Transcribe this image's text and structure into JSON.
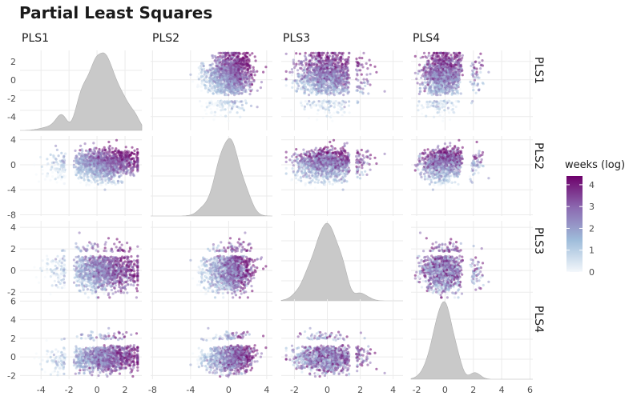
{
  "chart_data": {
    "type": "scatter",
    "title": "Partial Least Squares",
    "variables": [
      "PLS1",
      "PLS2",
      "PLS3",
      "PLS4"
    ],
    "axes": [
      {
        "name": "PLS1",
        "range": [
          -5.5,
          3.2
        ],
        "ticks": [
          -4,
          -2,
          0,
          2
        ],
        "center": 0.3,
        "sd": 1.3
      },
      {
        "name": "PLS2",
        "range": [
          -8.2,
          4.6
        ],
        "ticks": [
          -8,
          -4,
          0,
          4
        ],
        "center": 0.0,
        "sd": 1.2
      },
      {
        "name": "PLS3",
        "range": [
          -2.8,
          4.6
        ],
        "ticks": [
          -2,
          0,
          2,
          4
        ],
        "center": 0.0,
        "sd": 0.9
      },
      {
        "name": "PLS4",
        "range": [
          -2.4,
          6.2
        ],
        "ticks": [
          -2,
          0,
          2,
          4,
          6
        ],
        "center": -0.1,
        "sd": 0.7
      }
    ],
    "y_ticks": [
      [
        -4,
        -2,
        0,
        2
      ],
      [
        -8,
        -4,
        0,
        4
      ],
      [
        -2,
        0,
        2,
        4
      ],
      [
        -2,
        0,
        2,
        4,
        6
      ]
    ],
    "diagonal": "density",
    "density_fill": "#c9c9c9",
    "n_points": 1400,
    "correlations": {
      "PLS1-PLS2": 0.15,
      "PLS1-PLS3": 0.0,
      "PLS1-PLS4": 0.1,
      "PLS2-PLS3": 0.0,
      "PLS2-PLS4": 0.1,
      "PLS3-PLS4": 0.05
    },
    "legend": {
      "title": "weeks (log)",
      "ticks": [
        0,
        1,
        2,
        3,
        4
      ],
      "range": [
        0,
        4.4
      ],
      "colors": [
        "#f3f7fb",
        "#9ebcda",
        "#8c6bb1",
        "#6e016b"
      ]
    },
    "grid": true,
    "point_alpha": 0.55
  }
}
